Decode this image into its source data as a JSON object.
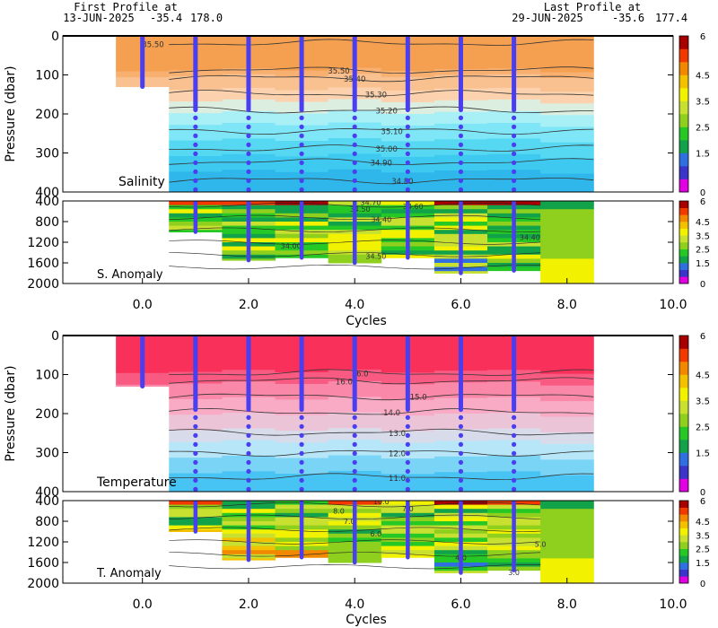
{
  "header": {
    "first_label": "First Profile at",
    "first_date": "13-JUN-2025",
    "first_lat": "-35.4",
    "first_lon": "178.0",
    "last_label": "Last Profile at",
    "last_date": "29-JUN-2025",
    "last_lat": "-35.6",
    "last_lon": "177.4"
  },
  "colors": {
    "profile_marker": "#4a3ff0",
    "contour": "#333333",
    "anomaly_scale": [
      "#e000e0",
      "#3a35c8",
      "#2f6fe0",
      "#12a34a",
      "#26c826",
      "#8fd01e",
      "#c8e030",
      "#f2f200",
      "#f2c200",
      "#f28800",
      "#f23a00",
      "#a80000"
    ]
  },
  "colorbar_ticks": [
    "6",
    "4.5",
    "3.5",
    "2.5",
    "1.5",
    "0"
  ],
  "chart_data": [
    {
      "type": "heatmap",
      "panel": "salinity",
      "label": "Salinity",
      "ylabel": "Pressure (dbar)",
      "ylim": [
        400,
        0
      ],
      "yticks": [
        "0",
        "100",
        "200",
        "300",
        "400"
      ],
      "contour_labels": [
        {
          "text": "35.50",
          "x": 0.2,
          "p": 22
        },
        {
          "text": "35.50",
          "x": 3.7,
          "p": 90
        },
        {
          "text": "35.40",
          "x": 4.0,
          "p": 110
        },
        {
          "text": "35.30",
          "x": 4.4,
          "p": 150
        },
        {
          "text": "35.20",
          "x": 4.6,
          "p": 192
        },
        {
          "text": "35.10",
          "x": 4.7,
          "p": 245
        },
        {
          "text": "35.00",
          "x": 4.6,
          "p": 290
        },
        {
          "text": "34.90",
          "x": 4.5,
          "p": 325
        },
        {
          "text": "34.80",
          "x": 4.9,
          "p": 372
        }
      ]
    },
    {
      "type": "heatmap",
      "panel": "salinity_anomaly",
      "label": "S. Anomaly",
      "ylim": [
        2000,
        400
      ],
      "yticks": [
        "400",
        "800",
        "1200",
        "1600",
        "2000"
      ],
      "contour_labels": [
        {
          "text": "34.70",
          "x": 4.3,
          "p": 430
        },
        {
          "text": "34.50",
          "x": 4.1,
          "p": 560
        },
        {
          "text": "34.40",
          "x": 4.5,
          "p": 760
        },
        {
          "text": "34.60",
          "x": 5.1,
          "p": 500
        },
        {
          "text": "34.00",
          "x": 2.8,
          "p": 1270
        },
        {
          "text": "34.50",
          "x": 4.4,
          "p": 1470
        },
        {
          "text": "34.40",
          "x": 7.3,
          "p": 1100
        }
      ]
    },
    {
      "type": "heatmap",
      "panel": "temperature",
      "label": "Temperature",
      "ylabel": "Pressure (dbar)",
      "ylim": [
        400,
        0
      ],
      "yticks": [
        "0",
        "100",
        "200",
        "300",
        "400"
      ],
      "contour_labels": [
        {
          "text": "16.0",
          "x": 4.1,
          "p": 98
        },
        {
          "text": "16.0",
          "x": 3.8,
          "p": 118
        },
        {
          "text": "15.0",
          "x": 5.2,
          "p": 158
        },
        {
          "text": "14.0",
          "x": 4.7,
          "p": 198
        },
        {
          "text": "13.0",
          "x": 4.8,
          "p": 250
        },
        {
          "text": "12.0",
          "x": 4.8,
          "p": 302
        },
        {
          "text": "11.0",
          "x": 4.8,
          "p": 365
        }
      ]
    },
    {
      "type": "heatmap",
      "panel": "temperature_anomaly",
      "label": "T. Anomaly",
      "xlabel": "Cycles",
      "xlim": [
        -1.5,
        10
      ],
      "xticks": [
        "0.0",
        "2.0",
        "4.0",
        "6.0",
        "8.0",
        "10.0"
      ],
      "ylim": [
        2000,
        400
      ],
      "yticks": [
        "400",
        "800",
        "1200",
        "1600",
        "2000"
      ],
      "contour_labels": [
        {
          "text": "10.0",
          "x": 4.5,
          "p": 420
        },
        {
          "text": "8.0",
          "x": 3.7,
          "p": 600
        },
        {
          "text": "7.0",
          "x": 5.0,
          "p": 560
        },
        {
          "text": "7.0",
          "x": 3.9,
          "p": 800
        },
        {
          "text": "6.0",
          "x": 4.4,
          "p": 1040
        },
        {
          "text": "5.0",
          "x": 7.5,
          "p": 1240
        },
        {
          "text": "4.0",
          "x": 6.0,
          "p": 1500
        },
        {
          "text": "3.0",
          "x": 7.0,
          "p": 1790
        }
      ]
    }
  ],
  "profile_cycles": [
    0,
    1,
    2,
    3,
    4,
    5,
    6,
    7
  ],
  "profile_max_depth": [
    130,
    1000,
    1550,
    1500,
    1600,
    1500,
    1800,
    1750
  ]
}
